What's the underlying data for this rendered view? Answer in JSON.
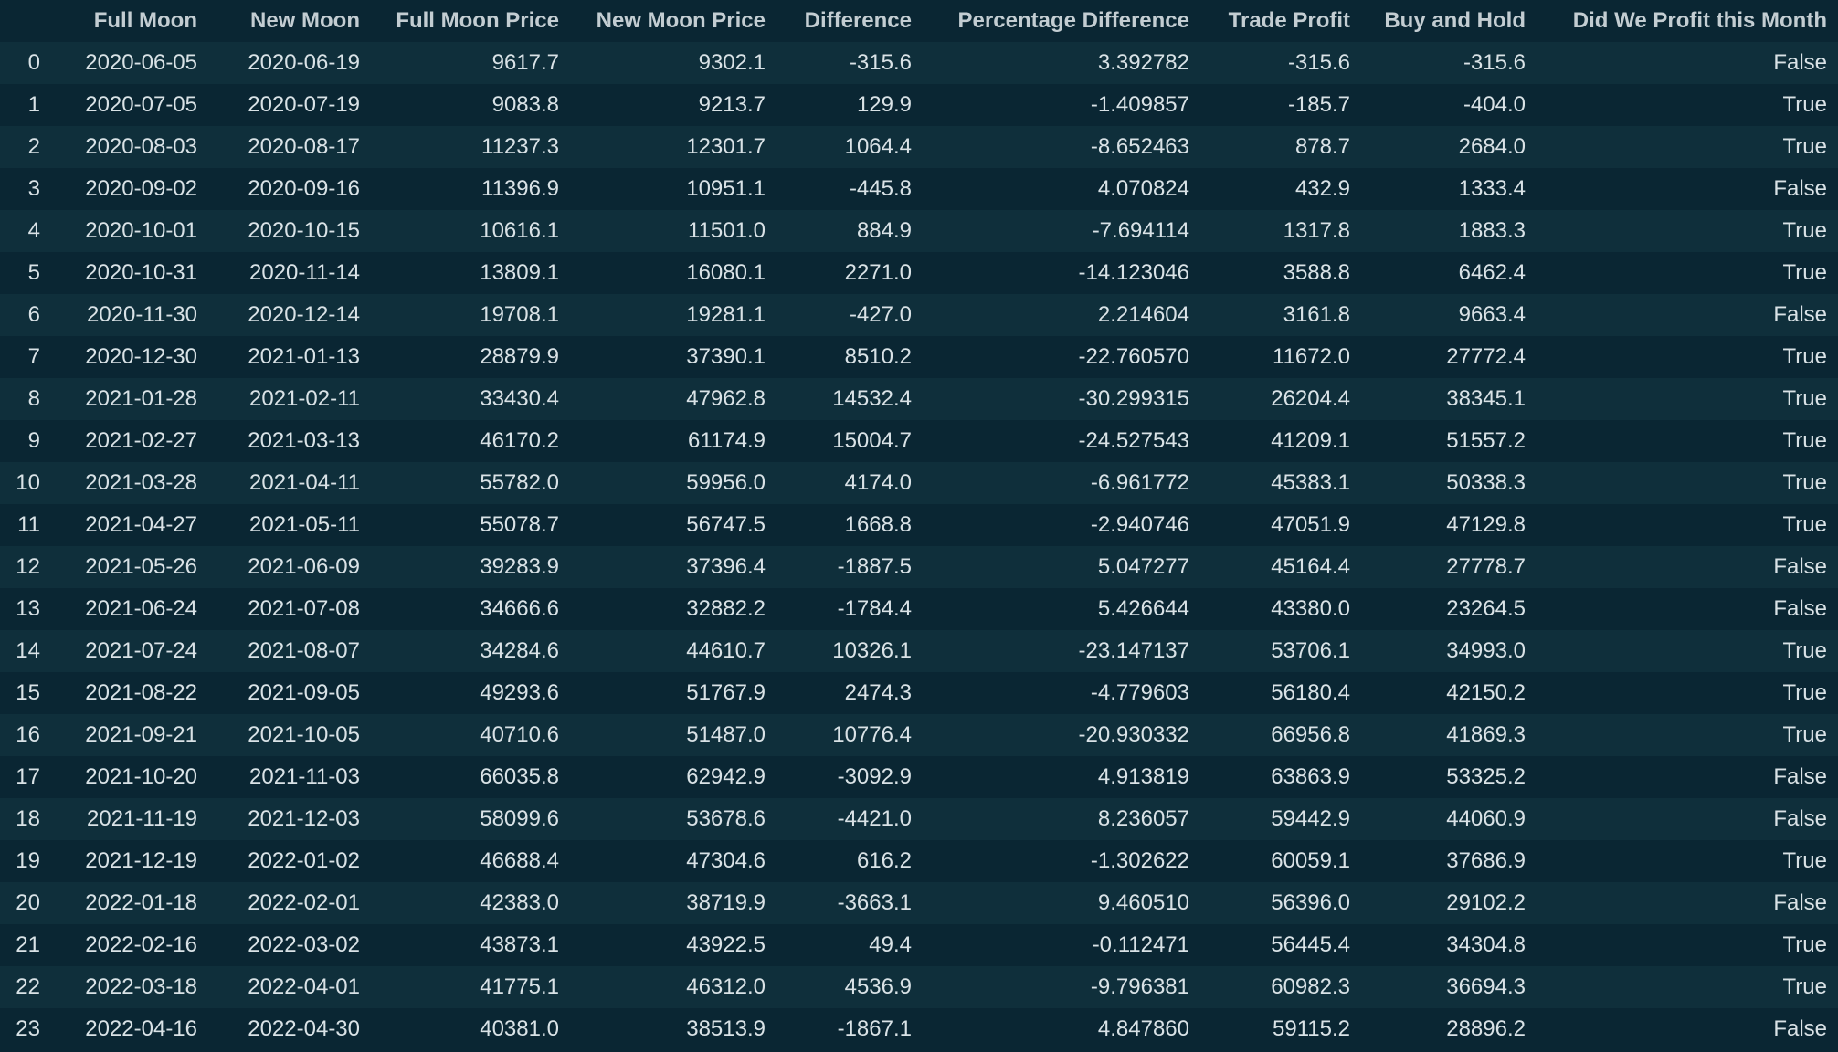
{
  "table": {
    "columns": [
      "",
      "Full Moon",
      "New Moon",
      "Full Moon Price",
      "New Moon Price",
      "Difference",
      "Percentage Difference",
      "Trade Profit",
      "Buy and Hold",
      "Did We Profit this Month"
    ],
    "rows": [
      [
        "0",
        "2020-06-05",
        "2020-06-19",
        "9617.7",
        "9302.1",
        "-315.6",
        "3.392782",
        "-315.6",
        "-315.6",
        "False"
      ],
      [
        "1",
        "2020-07-05",
        "2020-07-19",
        "9083.8",
        "9213.7",
        "129.9",
        "-1.409857",
        "-185.7",
        "-404.0",
        "True"
      ],
      [
        "2",
        "2020-08-03",
        "2020-08-17",
        "11237.3",
        "12301.7",
        "1064.4",
        "-8.652463",
        "878.7",
        "2684.0",
        "True"
      ],
      [
        "3",
        "2020-09-02",
        "2020-09-16",
        "11396.9",
        "10951.1",
        "-445.8",
        "4.070824",
        "432.9",
        "1333.4",
        "False"
      ],
      [
        "4",
        "2020-10-01",
        "2020-10-15",
        "10616.1",
        "11501.0",
        "884.9",
        "-7.694114",
        "1317.8",
        "1883.3",
        "True"
      ],
      [
        "5",
        "2020-10-31",
        "2020-11-14",
        "13809.1",
        "16080.1",
        "2271.0",
        "-14.123046",
        "3588.8",
        "6462.4",
        "True"
      ],
      [
        "6",
        "2020-11-30",
        "2020-12-14",
        "19708.1",
        "19281.1",
        "-427.0",
        "2.214604",
        "3161.8",
        "9663.4",
        "False"
      ],
      [
        "7",
        "2020-12-30",
        "2021-01-13",
        "28879.9",
        "37390.1",
        "8510.2",
        "-22.760570",
        "11672.0",
        "27772.4",
        "True"
      ],
      [
        "8",
        "2021-01-28",
        "2021-02-11",
        "33430.4",
        "47962.8",
        "14532.4",
        "-30.299315",
        "26204.4",
        "38345.1",
        "True"
      ],
      [
        "9",
        "2021-02-27",
        "2021-03-13",
        "46170.2",
        "61174.9",
        "15004.7",
        "-24.527543",
        "41209.1",
        "51557.2",
        "True"
      ],
      [
        "10",
        "2021-03-28",
        "2021-04-11",
        "55782.0",
        "59956.0",
        "4174.0",
        "-6.961772",
        "45383.1",
        "50338.3",
        "True"
      ],
      [
        "11",
        "2021-04-27",
        "2021-05-11",
        "55078.7",
        "56747.5",
        "1668.8",
        "-2.940746",
        "47051.9",
        "47129.8",
        "True"
      ],
      [
        "12",
        "2021-05-26",
        "2021-06-09",
        "39283.9",
        "37396.4",
        "-1887.5",
        "5.047277",
        "45164.4",
        "27778.7",
        "False"
      ],
      [
        "13",
        "2021-06-24",
        "2021-07-08",
        "34666.6",
        "32882.2",
        "-1784.4",
        "5.426644",
        "43380.0",
        "23264.5",
        "False"
      ],
      [
        "14",
        "2021-07-24",
        "2021-08-07",
        "34284.6",
        "44610.7",
        "10326.1",
        "-23.147137",
        "53706.1",
        "34993.0",
        "True"
      ],
      [
        "15",
        "2021-08-22",
        "2021-09-05",
        "49293.6",
        "51767.9",
        "2474.3",
        "-4.779603",
        "56180.4",
        "42150.2",
        "True"
      ],
      [
        "16",
        "2021-09-21",
        "2021-10-05",
        "40710.6",
        "51487.0",
        "10776.4",
        "-20.930332",
        "66956.8",
        "41869.3",
        "True"
      ],
      [
        "17",
        "2021-10-20",
        "2021-11-03",
        "66035.8",
        "62942.9",
        "-3092.9",
        "4.913819",
        "63863.9",
        "53325.2",
        "False"
      ],
      [
        "18",
        "2021-11-19",
        "2021-12-03",
        "58099.6",
        "53678.6",
        "-4421.0",
        "8.236057",
        "59442.9",
        "44060.9",
        "False"
      ],
      [
        "19",
        "2021-12-19",
        "2022-01-02",
        "46688.4",
        "47304.6",
        "616.2",
        "-1.302622",
        "60059.1",
        "37686.9",
        "True"
      ],
      [
        "20",
        "2022-01-18",
        "2022-02-01",
        "42383.0",
        "38719.9",
        "-3663.1",
        "9.460510",
        "56396.0",
        "29102.2",
        "False"
      ],
      [
        "21",
        "2022-02-16",
        "2022-03-02",
        "43873.1",
        "43922.5",
        "49.4",
        "-0.112471",
        "56445.4",
        "34304.8",
        "True"
      ],
      [
        "22",
        "2022-03-18",
        "2022-04-01",
        "41775.1",
        "46312.0",
        "4536.9",
        "-9.796381",
        "60982.3",
        "36694.3",
        "True"
      ],
      [
        "23",
        "2022-04-16",
        "2022-04-30",
        "40381.0",
        "38513.9",
        "-1867.1",
        "4.847860",
        "59115.2",
        "28896.2",
        "False"
      ]
    ]
  }
}
